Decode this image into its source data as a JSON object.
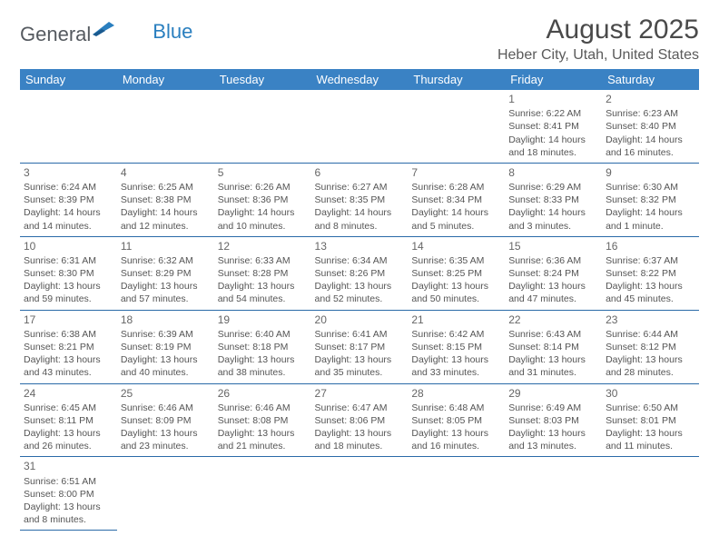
{
  "logo": {
    "text1": "General",
    "text2": "Blue"
  },
  "title": "August 2025",
  "location": "Heber City, Utah, United States",
  "colors": {
    "header_bg": "#3a82c4",
    "header_text": "#ffffff",
    "row_border": "#2a6aa8",
    "text": "#555555",
    "title": "#4a4a4a",
    "logo_gray": "#555a60",
    "logo_blue": "#2a7fbf"
  },
  "weekdays": [
    "Sunday",
    "Monday",
    "Tuesday",
    "Wednesday",
    "Thursday",
    "Friday",
    "Saturday"
  ],
  "weeks": [
    [
      null,
      null,
      null,
      null,
      null,
      {
        "n": "1",
        "sr": "6:22 AM",
        "ss": "8:41 PM",
        "dl": "14 hours and 18 minutes."
      },
      {
        "n": "2",
        "sr": "6:23 AM",
        "ss": "8:40 PM",
        "dl": "14 hours and 16 minutes."
      }
    ],
    [
      {
        "n": "3",
        "sr": "6:24 AM",
        "ss": "8:39 PM",
        "dl": "14 hours and 14 minutes."
      },
      {
        "n": "4",
        "sr": "6:25 AM",
        "ss": "8:38 PM",
        "dl": "14 hours and 12 minutes."
      },
      {
        "n": "5",
        "sr": "6:26 AM",
        "ss": "8:36 PM",
        "dl": "14 hours and 10 minutes."
      },
      {
        "n": "6",
        "sr": "6:27 AM",
        "ss": "8:35 PM",
        "dl": "14 hours and 8 minutes."
      },
      {
        "n": "7",
        "sr": "6:28 AM",
        "ss": "8:34 PM",
        "dl": "14 hours and 5 minutes."
      },
      {
        "n": "8",
        "sr": "6:29 AM",
        "ss": "8:33 PM",
        "dl": "14 hours and 3 minutes."
      },
      {
        "n": "9",
        "sr": "6:30 AM",
        "ss": "8:32 PM",
        "dl": "14 hours and 1 minute."
      }
    ],
    [
      {
        "n": "10",
        "sr": "6:31 AM",
        "ss": "8:30 PM",
        "dl": "13 hours and 59 minutes."
      },
      {
        "n": "11",
        "sr": "6:32 AM",
        "ss": "8:29 PM",
        "dl": "13 hours and 57 minutes."
      },
      {
        "n": "12",
        "sr": "6:33 AM",
        "ss": "8:28 PM",
        "dl": "13 hours and 54 minutes."
      },
      {
        "n": "13",
        "sr": "6:34 AM",
        "ss": "8:26 PM",
        "dl": "13 hours and 52 minutes."
      },
      {
        "n": "14",
        "sr": "6:35 AM",
        "ss": "8:25 PM",
        "dl": "13 hours and 50 minutes."
      },
      {
        "n": "15",
        "sr": "6:36 AM",
        "ss": "8:24 PM",
        "dl": "13 hours and 47 minutes."
      },
      {
        "n": "16",
        "sr": "6:37 AM",
        "ss": "8:22 PM",
        "dl": "13 hours and 45 minutes."
      }
    ],
    [
      {
        "n": "17",
        "sr": "6:38 AM",
        "ss": "8:21 PM",
        "dl": "13 hours and 43 minutes."
      },
      {
        "n": "18",
        "sr": "6:39 AM",
        "ss": "8:19 PM",
        "dl": "13 hours and 40 minutes."
      },
      {
        "n": "19",
        "sr": "6:40 AM",
        "ss": "8:18 PM",
        "dl": "13 hours and 38 minutes."
      },
      {
        "n": "20",
        "sr": "6:41 AM",
        "ss": "8:17 PM",
        "dl": "13 hours and 35 minutes."
      },
      {
        "n": "21",
        "sr": "6:42 AM",
        "ss": "8:15 PM",
        "dl": "13 hours and 33 minutes."
      },
      {
        "n": "22",
        "sr": "6:43 AM",
        "ss": "8:14 PM",
        "dl": "13 hours and 31 minutes."
      },
      {
        "n": "23",
        "sr": "6:44 AM",
        "ss": "8:12 PM",
        "dl": "13 hours and 28 minutes."
      }
    ],
    [
      {
        "n": "24",
        "sr": "6:45 AM",
        "ss": "8:11 PM",
        "dl": "13 hours and 26 minutes."
      },
      {
        "n": "25",
        "sr": "6:46 AM",
        "ss": "8:09 PM",
        "dl": "13 hours and 23 minutes."
      },
      {
        "n": "26",
        "sr": "6:46 AM",
        "ss": "8:08 PM",
        "dl": "13 hours and 21 minutes."
      },
      {
        "n": "27",
        "sr": "6:47 AM",
        "ss": "8:06 PM",
        "dl": "13 hours and 18 minutes."
      },
      {
        "n": "28",
        "sr": "6:48 AM",
        "ss": "8:05 PM",
        "dl": "13 hours and 16 minutes."
      },
      {
        "n": "29",
        "sr": "6:49 AM",
        "ss": "8:03 PM",
        "dl": "13 hours and 13 minutes."
      },
      {
        "n": "30",
        "sr": "6:50 AM",
        "ss": "8:01 PM",
        "dl": "13 hours and 11 minutes."
      }
    ],
    [
      {
        "n": "31",
        "sr": "6:51 AM",
        "ss": "8:00 PM",
        "dl": "13 hours and 8 minutes."
      },
      null,
      null,
      null,
      null,
      null,
      null
    ]
  ],
  "labels": {
    "sunrise": "Sunrise:",
    "sunset": "Sunset:",
    "daylight": "Daylight:"
  }
}
